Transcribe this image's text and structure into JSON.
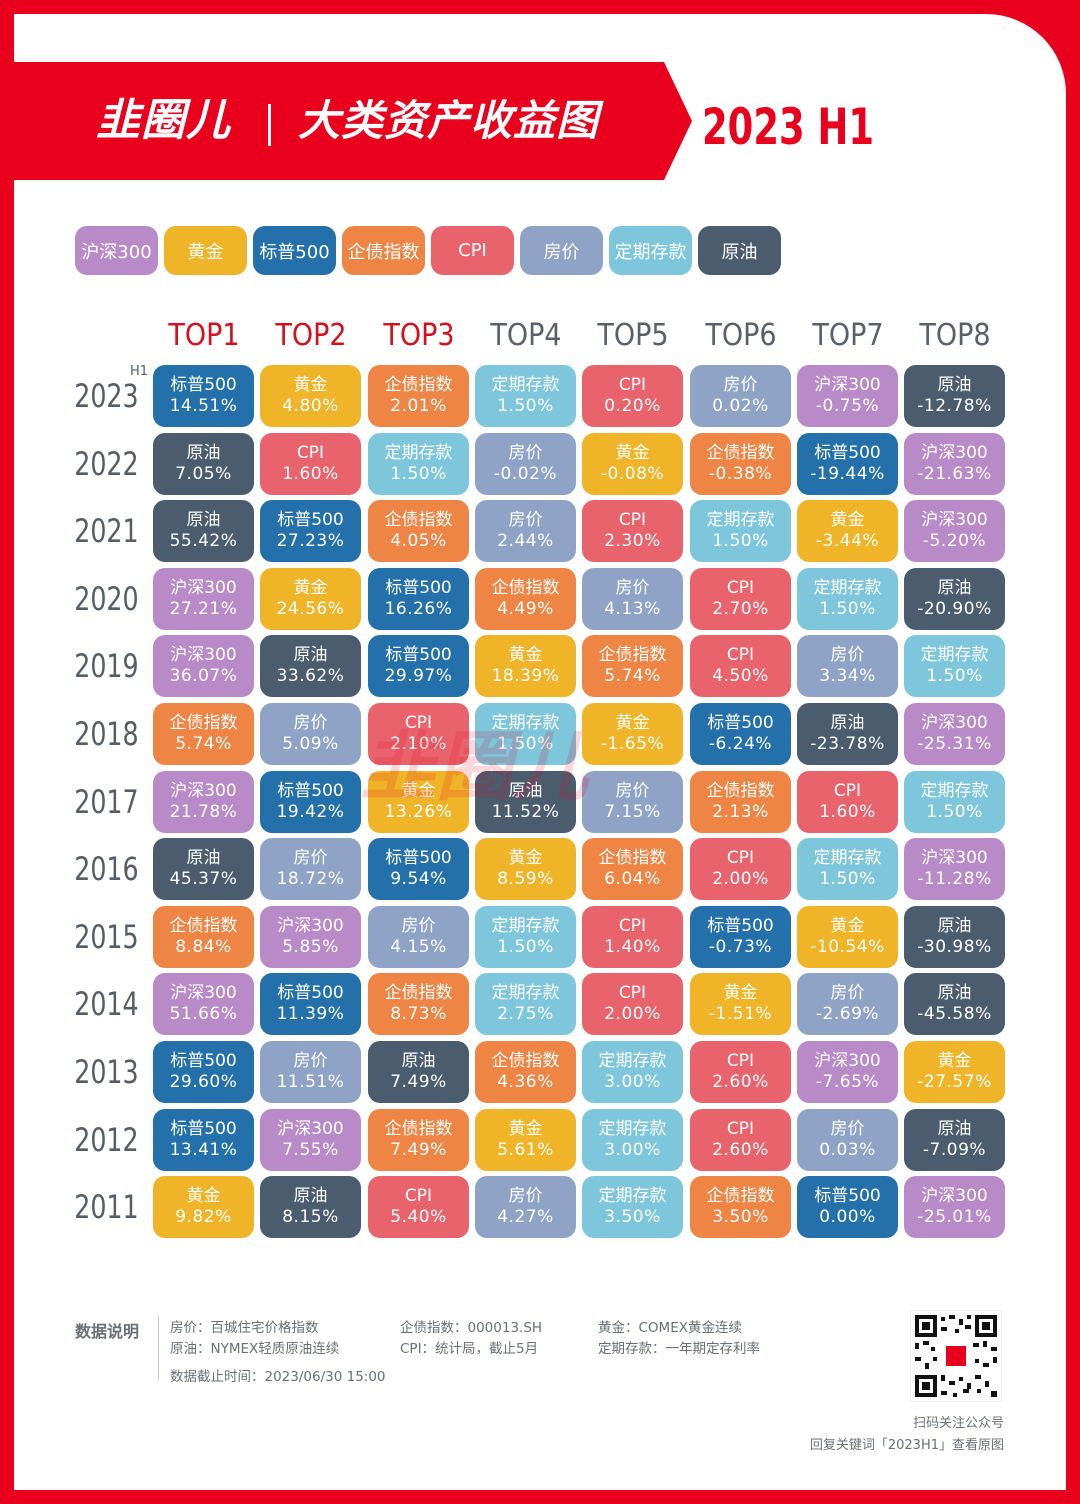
{
  "header": {
    "brand": "韭圈儿",
    "title": "大类资产收益图",
    "period": "2023 H1"
  },
  "colors": {
    "沪深300": "#b88ac7",
    "黄金": "#f0b429",
    "标普500": "#2470aa",
    "企债指数": "#ee8545",
    "CPI": "#e9636c",
    "房价": "#8ea3c5",
    "定期存款": "#7dc6dc",
    "原油": "#4a5c6e"
  },
  "legend": [
    "沪深300",
    "黄金",
    "标普500",
    "企债指数",
    "CPI",
    "房价",
    "定期存款",
    "原油"
  ],
  "columns": [
    "TOP1",
    "TOP2",
    "TOP3",
    "TOP4",
    "TOP5",
    "TOP6",
    "TOP7",
    "TOP8"
  ],
  "h1_mark": "H1",
  "watermark": "韭圈儿",
  "rows": [
    {
      "year": "2023",
      "cells": [
        [
          "标普500",
          "14.51%"
        ],
        [
          "黄金",
          "4.80%"
        ],
        [
          "企债指数",
          "2.01%"
        ],
        [
          "定期存款",
          "1.50%"
        ],
        [
          "CPI",
          "0.20%"
        ],
        [
          "房价",
          "0.02%"
        ],
        [
          "沪深300",
          "-0.75%"
        ],
        [
          "原油",
          "-12.78%"
        ]
      ]
    },
    {
      "year": "2022",
      "cells": [
        [
          "原油",
          "7.05%"
        ],
        [
          "CPI",
          "1.60%"
        ],
        [
          "定期存款",
          "1.50%"
        ],
        [
          "房价",
          "-0.02%"
        ],
        [
          "黄金",
          "-0.08%"
        ],
        [
          "企债指数",
          "-0.38%"
        ],
        [
          "标普500",
          "-19.44%"
        ],
        [
          "沪深300",
          "-21.63%"
        ]
      ]
    },
    {
      "year": "2021",
      "cells": [
        [
          "原油",
          "55.42%"
        ],
        [
          "标普500",
          "27.23%"
        ],
        [
          "企债指数",
          "4.05%"
        ],
        [
          "房价",
          "2.44%"
        ],
        [
          "CPI",
          "2.30%"
        ],
        [
          "定期存款",
          "1.50%"
        ],
        [
          "黄金",
          "-3.44%"
        ],
        [
          "沪深300",
          "-5.20%"
        ]
      ]
    },
    {
      "year": "2020",
      "cells": [
        [
          "沪深300",
          "27.21%"
        ],
        [
          "黄金",
          "24.56%"
        ],
        [
          "标普500",
          "16.26%"
        ],
        [
          "企债指数",
          "4.49%"
        ],
        [
          "房价",
          "4.13%"
        ],
        [
          "CPI",
          "2.70%"
        ],
        [
          "定期存款",
          "1.50%"
        ],
        [
          "原油",
          "-20.90%"
        ]
      ]
    },
    {
      "year": "2019",
      "cells": [
        [
          "沪深300",
          "36.07%"
        ],
        [
          "原油",
          "33.62%"
        ],
        [
          "标普500",
          "29.97%"
        ],
        [
          "黄金",
          "18.39%"
        ],
        [
          "企债指数",
          "5.74%"
        ],
        [
          "CPI",
          "4.50%"
        ],
        [
          "房价",
          "3.34%"
        ],
        [
          "定期存款",
          "1.50%"
        ]
      ]
    },
    {
      "year": "2018",
      "cells": [
        [
          "企债指数",
          "5.74%"
        ],
        [
          "房价",
          "5.09%"
        ],
        [
          "CPI",
          "2.10%"
        ],
        [
          "定期存款",
          "1.50%"
        ],
        [
          "黄金",
          "-1.65%"
        ],
        [
          "标普500",
          "-6.24%"
        ],
        [
          "原油",
          "-23.78%"
        ],
        [
          "沪深300",
          "-25.31%"
        ]
      ]
    },
    {
      "year": "2017",
      "cells": [
        [
          "沪深300",
          "21.78%"
        ],
        [
          "标普500",
          "19.42%"
        ],
        [
          "黄金",
          "13.26%"
        ],
        [
          "原油",
          "11.52%"
        ],
        [
          "房价",
          "7.15%"
        ],
        [
          "企债指数",
          "2.13%"
        ],
        [
          "CPI",
          "1.60%"
        ],
        [
          "定期存款",
          "1.50%"
        ]
      ]
    },
    {
      "year": "2016",
      "cells": [
        [
          "原油",
          "45.37%"
        ],
        [
          "房价",
          "18.72%"
        ],
        [
          "标普500",
          "9.54%"
        ],
        [
          "黄金",
          "8.59%"
        ],
        [
          "企债指数",
          "6.04%"
        ],
        [
          "CPI",
          "2.00%"
        ],
        [
          "定期存款",
          "1.50%"
        ],
        [
          "沪深300",
          "-11.28%"
        ]
      ]
    },
    {
      "year": "2015",
      "cells": [
        [
          "企债指数",
          "8.84%"
        ],
        [
          "沪深300",
          "5.85%"
        ],
        [
          "房价",
          "4.15%"
        ],
        [
          "定期存款",
          "1.50%"
        ],
        [
          "CPI",
          "1.40%"
        ],
        [
          "标普500",
          "-0.73%"
        ],
        [
          "黄金",
          "-10.54%"
        ],
        [
          "原油",
          "-30.98%"
        ]
      ]
    },
    {
      "year": "2014",
      "cells": [
        [
          "沪深300",
          "51.66%"
        ],
        [
          "标普500",
          "11.39%"
        ],
        [
          "企债指数",
          "8.73%"
        ],
        [
          "定期存款",
          "2.75%"
        ],
        [
          "CPI",
          "2.00%"
        ],
        [
          "黄金",
          "-1.51%"
        ],
        [
          "房价",
          "-2.69%"
        ],
        [
          "原油",
          "-45.58%"
        ]
      ]
    },
    {
      "year": "2013",
      "cells": [
        [
          "标普500",
          "29.60%"
        ],
        [
          "房价",
          "11.51%"
        ],
        [
          "原油",
          "7.49%"
        ],
        [
          "企债指数",
          "4.36%"
        ],
        [
          "定期存款",
          "3.00%"
        ],
        [
          "CPI",
          "2.60%"
        ],
        [
          "沪深300",
          "-7.65%"
        ],
        [
          "黄金",
          "-27.57%"
        ]
      ]
    },
    {
      "year": "2012",
      "cells": [
        [
          "标普500",
          "13.41%"
        ],
        [
          "沪深300",
          "7.55%"
        ],
        [
          "企债指数",
          "7.49%"
        ],
        [
          "黄金",
          "5.61%"
        ],
        [
          "定期存款",
          "3.00%"
        ],
        [
          "CPI",
          "2.60%"
        ],
        [
          "房价",
          "0.03%"
        ],
        [
          "原油",
          "-7.09%"
        ]
      ]
    },
    {
      "year": "2011",
      "cells": [
        [
          "黄金",
          "9.82%"
        ],
        [
          "原油",
          "8.15%"
        ],
        [
          "CPI",
          "5.40%"
        ],
        [
          "房价",
          "4.27%"
        ],
        [
          "定期存款",
          "3.50%"
        ],
        [
          "企债指数",
          "3.50%"
        ],
        [
          "标普500",
          "0.00%"
        ],
        [
          "沪深300",
          "-25.01%"
        ]
      ]
    }
  ],
  "footer": {
    "heading": "数据说明",
    "notes": [
      "房价：百城住宅价格指数",
      "企债指数：000013.SH",
      "黄金：COMEX黄金连续",
      "原油：NYMEX轻质原油连续",
      "CPI：统计局，截止5月",
      "定期存款：一年期定存利率",
      "数据截止时间：2023/06/30 15:00"
    ],
    "qr_caption1": "扫码关注公众号",
    "qr_caption2": "回复关键词「2023H1」查看原图"
  }
}
